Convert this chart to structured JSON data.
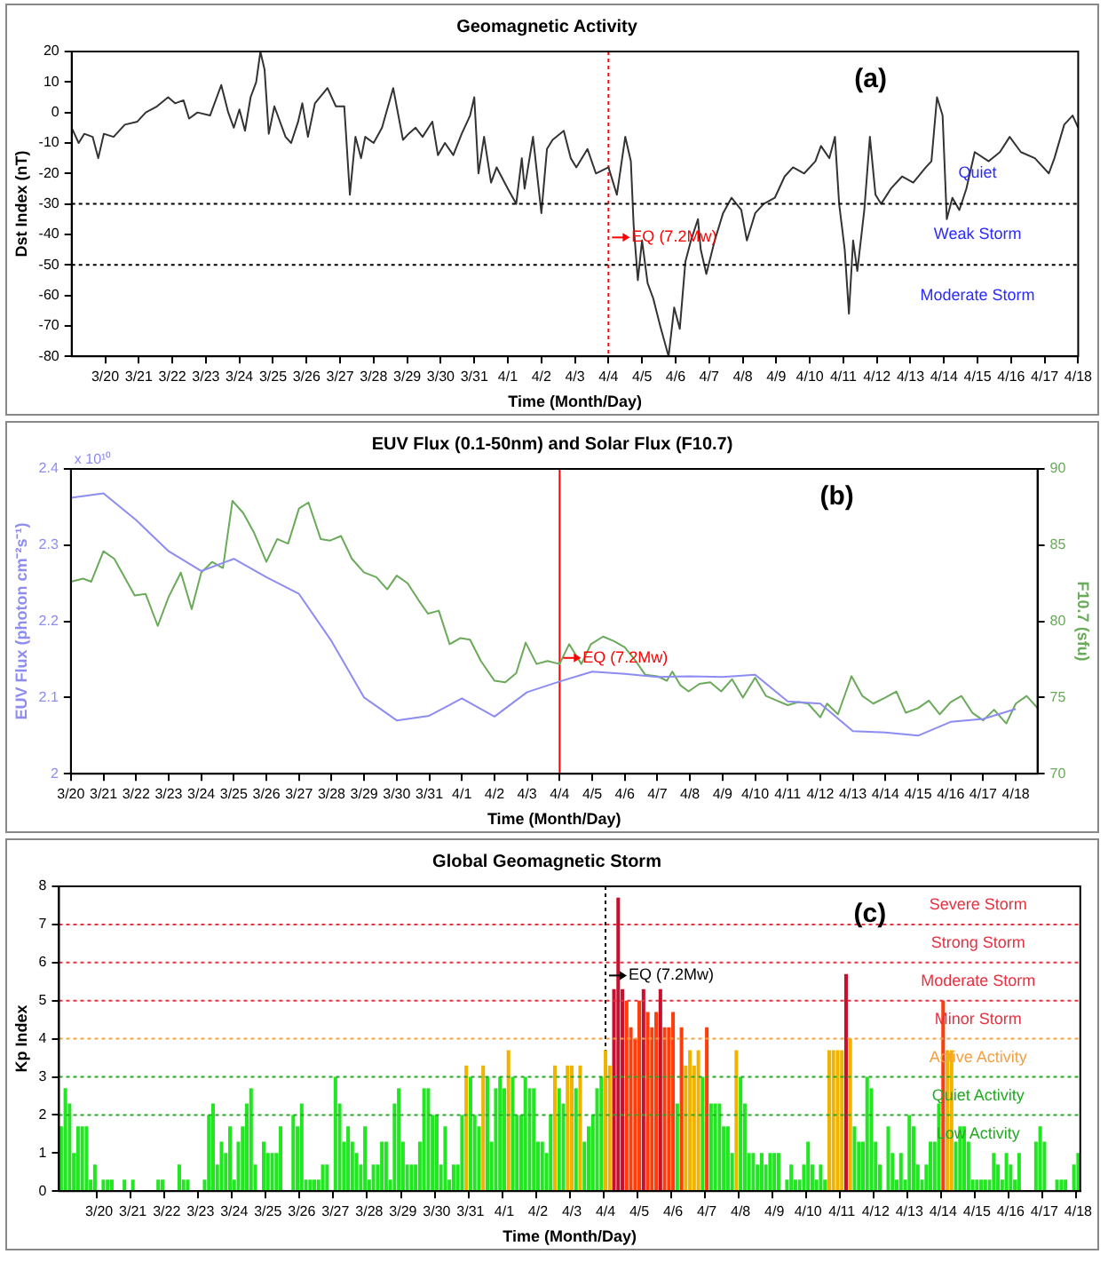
{
  "chart_data": [
    {
      "type": "line",
      "title": "Geomagnetic Activity",
      "xlabel": "Time (Month/Day)",
      "ylabel": "Dst Index (nT)",
      "xlim": [
        "--03-19T00:00",
        "--04-18T00:00"
      ],
      "xticks": [
        {
          "value": "--03-20",
          "label": "3/20"
        },
        {
          "value": "--03-21",
          "label": "3/21"
        },
        {
          "value": "--03-22",
          "label": "3/22"
        },
        {
          "value": "--03-23",
          "label": "3/23"
        },
        {
          "value": "--03-24",
          "label": "3/24"
        },
        {
          "value": "--03-25",
          "label": "3/25"
        },
        {
          "value": "--03-26",
          "label": "3/26"
        },
        {
          "value": "--03-27",
          "label": "3/27"
        },
        {
          "value": "--03-28",
          "label": "3/28"
        },
        {
          "value": "--03-29",
          "label": "3/29"
        },
        {
          "value": "--03-30",
          "label": "3/30"
        },
        {
          "value": "--03-31",
          "label": "3/31"
        },
        {
          "value": "--04-01",
          "label": "4/1"
        },
        {
          "value": "--04-02",
          "label": "4/2"
        },
        {
          "value": "--04-03",
          "label": "4/3"
        },
        {
          "value": "--04-04",
          "label": "4/4"
        },
        {
          "value": "--04-05",
          "label": "4/5"
        },
        {
          "value": "--04-06",
          "label": "4/6"
        },
        {
          "value": "--04-07",
          "label": "4/7"
        },
        {
          "value": "--04-08",
          "label": "4/8"
        },
        {
          "value": "--04-09",
          "label": "4/9"
        },
        {
          "value": "--04-10",
          "label": "4/10"
        },
        {
          "value": "--04-11",
          "label": "4/11"
        },
        {
          "value": "--04-12",
          "label": "4/12"
        },
        {
          "value": "--04-13",
          "label": "4/13"
        },
        {
          "value": "--04-14",
          "label": "4/14"
        },
        {
          "value": "--04-15",
          "label": "4/15"
        },
        {
          "value": "--04-16",
          "label": "4/16"
        },
        {
          "value": "--04-17",
          "label": "4/17"
        },
        {
          "value": "--04-18",
          "label": "4/18"
        }
      ],
      "ylim": [
        -80,
        20
      ],
      "yticks": [
        -80,
        -70,
        -60,
        -50,
        -40,
        -30,
        -20,
        -10,
        0,
        10,
        20
      ],
      "series": [
        {
          "color": "#333333",
          "x": [
            "--03-19T00:00",
            "--03-19T05:00",
            "--03-19T09:00",
            "--03-19T15:00",
            "--03-19T19:00",
            "--03-19T23:00",
            "--03-20T06:00",
            "--03-20T14:00",
            "--03-20T23:00",
            "--03-21T05:00",
            "--03-21T13:00",
            "--03-21T21:00",
            "--03-22T02:00",
            "--03-22T08:00",
            "--03-22T12:00",
            "--03-22T18:00",
            "--03-23T03:00",
            "--03-23T11:00",
            "--03-23T16:00",
            "--03-23T20:00",
            "--03-24T00:00",
            "--03-24T04:00",
            "--03-24T08:00",
            "--03-24T12:00",
            "--03-24T15:00",
            "--03-24T18:00",
            "--03-24T21:00",
            "--03-25T01:00",
            "--03-25T09:00",
            "--03-25T13:00",
            "--03-25T18:00",
            "--03-25T21:00",
            "--03-26T01:00",
            "--03-26T06:00",
            "--03-26T15:00",
            "--03-26T21:00",
            "--03-27T03:00",
            "--03-27T07:00",
            "--03-27T11:00",
            "--03-27T15:00",
            "--03-27T18:00",
            "--03-28T00:00",
            "--03-28T06:00",
            "--03-28T14:00",
            "--03-28T21:00",
            "--03-29T01:00",
            "--03-29T06:00",
            "--03-29T11:00",
            "--03-29T18:00",
            "--03-29T22:00",
            "--03-30T03:00",
            "--03-30T09:00",
            "--03-30T15:00",
            "--03-30T21:00",
            "--03-31T00:00",
            "--03-31T03:00",
            "--03-31T07:00",
            "--03-31T12:00",
            "--03-31T16:00",
            "--04-01T00:00",
            "--04-01T06:00",
            "--04-01T10:00",
            "--04-01T12:00",
            "--04-01T18:00",
            "--04-02T00:00",
            "--04-02T04:00",
            "--04-02T08:00",
            "--04-02T16:00",
            "--04-02T21:00",
            "--04-03T01:00",
            "--04-03T09:00",
            "--04-03T15:00",
            "--04-04T00:00",
            "--04-04T06:00",
            "--04-04T12:00",
            "--04-04T16:00",
            "--04-04T18:00",
            "--04-04T21:00",
            "--04-05T00:00",
            "--04-05T04:00",
            "--04-05T08:00",
            "--04-05T13:00",
            "--04-05T19:00",
            "--04-05T23:00",
            "--04-06T03:00",
            "--04-06T07:00",
            "--04-06T11:00",
            "--04-06T16:00",
            "--04-06T18:00",
            "--04-06T22:00",
            "--04-07T04:00",
            "--04-07T10:00",
            "--04-07T16:00",
            "--04-07T23:00",
            "--04-08T03:00",
            "--04-08T09:00",
            "--04-08T15:00",
            "--04-08T23:00",
            "--04-09T06:00",
            "--04-09T12:00",
            "--04-09T20:00",
            "--04-10T04:00",
            "--04-10T08:00",
            "--04-10T14:00",
            "--04-10T18:00",
            "--04-10T21:00",
            "--04-11T01:00",
            "--04-11T04:00",
            "--04-11T07:00",
            "--04-11T10:00",
            "--04-11T15:00",
            "--04-11T19:00",
            "--04-11T23:00",
            "--04-12T03:00",
            "--04-12T10:00",
            "--04-12T18:00",
            "--04-13T02:00",
            "--04-13T11:00",
            "--04-13T15:00",
            "--04-13T19:00",
            "--04-13T23:00",
            "--04-14T02:00",
            "--04-14T06:00",
            "--04-14T11:00",
            "--04-14T16:00",
            "--04-14T22:00",
            "--04-15T08:00",
            "--04-15T16:00",
            "--04-15T23:00",
            "--04-16T07:00",
            "--04-16T17:00",
            "--04-17T03:00",
            "--04-17T07:00",
            "--04-17T14:00",
            "--04-17T20:00",
            "--04-18T00:00"
          ],
          "values": [
            -5,
            -10,
            -7,
            -8,
            -15,
            -7,
            -8,
            -4,
            -3,
            0,
            2,
            5,
            3,
            4,
            -2,
            0,
            -1,
            9,
            0,
            -5,
            1,
            -6,
            5,
            10,
            20,
            14,
            -7,
            2,
            -8,
            -10,
            -3,
            3,
            -8,
            3,
            8,
            2,
            2,
            -27,
            -8,
            -15,
            -8,
            -10,
            -5,
            8,
            -9,
            -7,
            -5,
            -8,
            -3,
            -14,
            -10,
            -14,
            -7,
            -1,
            5,
            -20,
            -8,
            -23,
            -18,
            -25,
            -30,
            -15,
            -25,
            -8,
            -33,
            -12,
            -9,
            -6,
            -15,
            -18,
            -12,
            -20,
            -18,
            -27,
            -8,
            -16,
            -37,
            -55,
            -42,
            -56,
            -61,
            -70,
            -80,
            -64,
            -71,
            -49,
            -42,
            -35,
            -45,
            -53,
            -42,
            -33,
            -28,
            -32,
            -42,
            -33,
            -30,
            -28,
            -21,
            -18,
            -20,
            -16,
            -11,
            -15,
            -8,
            -30,
            -45,
            -66,
            -42,
            -52,
            -32,
            -8,
            -27,
            -30,
            -25,
            -21,
            -23,
            -18,
            -16,
            5,
            -1,
            -35,
            -28,
            -32,
            -25,
            -13,
            -16,
            -13,
            -8,
            -13,
            -15,
            -20,
            -15,
            -4,
            -1,
            -5
          ]
        }
      ],
      "ref_lines": [
        {
          "axis": "y",
          "value": -30,
          "line_style": "dotted"
        },
        {
          "axis": "y",
          "value": -50,
          "line_style": "dotted"
        },
        {
          "axis": "x",
          "value": "--04-04",
          "color": "#ff0000",
          "line_style": "dotted"
        }
      ],
      "annotations": [
        "(a)",
        "Quiet",
        "Weak Storm",
        "Moderate Storm",
        {
          "text": "EQ (7.2Mw)",
          "x": "--04-04",
          "y": -41
        }
      ]
    },
    {
      "type": "line",
      "title": "EUV Flux (0.1-50nm) and Solar Flux (F10.7)",
      "xlabel": "Time (Month/Day)",
      "ylabel": "EUV Flux (photon cm⁻²s⁻¹)",
      "y2label": "F10.7 (sfu)",
      "xlim": [
        "--03-20T00:00",
        "--04-18T16:00"
      ],
      "xticks": [
        {
          "value": "--03-20",
          "label": "3/20"
        },
        {
          "value": "--03-21",
          "label": "3/21"
        },
        {
          "value": "--03-22",
          "label": "3/22"
        },
        {
          "value": "--03-23",
          "label": "3/23"
        },
        {
          "value": "--03-24",
          "label": "3/24"
        },
        {
          "value": "--03-25",
          "label": "3/25"
        },
        {
          "value": "--03-26",
          "label": "3/26"
        },
        {
          "value": "--03-27",
          "label": "3/27"
        },
        {
          "value": "--03-28",
          "label": "3/28"
        },
        {
          "value": "--03-29",
          "label": "3/29"
        },
        {
          "value": "--03-30",
          "label": "3/30"
        },
        {
          "value": "--03-31",
          "label": "3/31"
        },
        {
          "value": "--04-01",
          "label": "4/1"
        },
        {
          "value": "--04-02",
          "label": "4/2"
        },
        {
          "value": "--04-03",
          "label": "4/3"
        },
        {
          "value": "--04-04",
          "label": "4/4"
        },
        {
          "value": "--04-05",
          "label": "4/5"
        },
        {
          "value": "--04-06",
          "label": "4/6"
        },
        {
          "value": "--04-07",
          "label": "4/7"
        },
        {
          "value": "--04-08",
          "label": "4/8"
        },
        {
          "value": "--04-09",
          "label": "4/9"
        },
        {
          "value": "--04-10",
          "label": "4/10"
        },
        {
          "value": "--04-11",
          "label": "4/11"
        },
        {
          "value": "--04-12",
          "label": "4/12"
        },
        {
          "value": "--04-13",
          "label": "4/13"
        },
        {
          "value": "--04-14",
          "label": "4/14"
        },
        {
          "value": "--04-15",
          "label": "4/15"
        },
        {
          "value": "--04-16",
          "label": "4/16"
        },
        {
          "value": "--04-17",
          "label": "4/17"
        },
        {
          "value": "--04-18",
          "label": "4/18"
        }
      ],
      "ylim": [
        2,
        2.4
      ],
      "yticks": [
        2,
        2.1,
        2.2,
        2.3,
        2.4
      ],
      "y2lim": [
        70,
        90
      ],
      "y2ticks": [
        70,
        75,
        80,
        85,
        90
      ],
      "series": [
        {
          "color": "#8c8cf2",
          "x": [
            "--03-20",
            "--03-21",
            "--03-22",
            "--03-23",
            "--03-24",
            "--03-25",
            "--03-26",
            "--03-27",
            "--03-28",
            "--03-29",
            "--03-30",
            "--03-31",
            "--04-01",
            "--04-02",
            "--04-03",
            "--04-04",
            "--04-05",
            "--04-06",
            "--04-07",
            "--04-08",
            "--04-09",
            "--04-10",
            "--04-11",
            "--04-12",
            "--04-13",
            "--04-14",
            "--04-15",
            "--04-16",
            "--04-17",
            "--04-18"
          ],
          "values": [
            2.362,
            2.368,
            2.333,
            2.292,
            2.266,
            2.282,
            2.258,
            2.236,
            2.174,
            2.1,
            2.07,
            2.076,
            2.099,
            2.075,
            2.107,
            2.121,
            2.134,
            2.131,
            2.127,
            2.128,
            2.127,
            2.13,
            2.095,
            2.092,
            2.056,
            2.054,
            2.05,
            2.068,
            2.072,
            2.085
          ]
        },
        {
          "color": "#6aaa5a",
          "axis": "y2",
          "x": [
            "--03-20T00:00",
            "--03-20T09:00",
            "--03-20T15:00",
            "--03-21T00:00",
            "--03-21T08:00",
            "--03-21T23:00",
            "--03-22T07:00",
            "--03-22T16:00",
            "--03-23T00:00",
            "--03-23T09:00",
            "--03-23T17:00",
            "--03-24T00:00",
            "--03-24T08:00",
            "--03-24T16:00",
            "--03-24T23:00",
            "--03-25T07:00",
            "--03-25T15:00",
            "--03-26T00:00",
            "--03-26T08:00",
            "--03-26T16:00",
            "--03-27T00:00",
            "--03-27T07:00",
            "--03-27T16:00",
            "--03-27T23:00",
            "--03-28T07:00",
            "--03-28T15:00",
            "--03-29T00:00",
            "--03-29T09:00",
            "--03-29T17:00",
            "--03-30T00:00",
            "--03-30T08:00",
            "--03-30T16:00",
            "--03-30T23:00",
            "--03-31T07:00",
            "--03-31T15:00",
            "--03-31T23:00",
            "--04-01T06:00",
            "--04-01T14:00",
            "--04-02T00:00",
            "--04-02T08:00",
            "--04-02T16:00",
            "--04-02T23:00",
            "--04-03T07:00",
            "--04-03T15:00",
            "--04-04T00:00",
            "--04-04T07:00",
            "--04-04T16:00",
            "--04-04T23:00",
            "--04-05T08:00",
            "--04-05T16:00",
            "--04-06T00:00",
            "--04-06T08:00",
            "--04-06T15:00",
            "--04-07T00:00",
            "--04-07T07:00",
            "--04-07T11:00",
            "--04-07T17:00",
            "--04-07T23:00",
            "--04-08T07:00",
            "--04-08T15:00",
            "--04-08T23:00",
            "--04-09T07:00",
            "--04-09T15:00",
            "--04-10T00:00",
            "--04-10T08:00",
            "--04-10T16:00",
            "--04-11T00:00",
            "--04-11T08:00",
            "--04-11T15:00",
            "--04-12T00:00",
            "--04-12T05:00",
            "--04-12T13:00",
            "--04-12T23:00",
            "--04-13T07:00",
            "--04-13T15:00",
            "--04-14T00:00",
            "--04-14T08:00",
            "--04-14T15:00",
            "--04-15T00:00",
            "--04-15T08:00",
            "--04-15T16:00",
            "--04-16T00:00",
            "--04-16T08:00",
            "--04-16T16:00",
            "--04-17T00:00",
            "--04-17T08:00",
            "--04-17T17:00",
            "--04-18T00:00",
            "--04-18T08:00",
            "--04-18T16:00"
          ],
          "values": [
            82.6,
            82.8,
            82.6,
            84.6,
            84.1,
            81.7,
            81.8,
            79.7,
            81.6,
            83.2,
            80.8,
            83.2,
            83.9,
            83.5,
            87.9,
            87.1,
            85.8,
            83.9,
            85.4,
            85.1,
            87.4,
            87.8,
            85.4,
            85.3,
            85.6,
            84.1,
            83.2,
            82.9,
            82.1,
            83,
            82.5,
            81.4,
            80.5,
            80.7,
            78.5,
            78.9,
            78.8,
            77.4,
            76.1,
            76,
            76.6,
            78.6,
            77.2,
            77.4,
            77.2,
            78.5,
            77.2,
            78.5,
            79,
            78.7,
            78.3,
            77.4,
            76.5,
            76.4,
            76.1,
            76.7,
            75.8,
            75.4,
            75.9,
            76,
            75.4,
            76.2,
            75,
            76.3,
            75.1,
            74.8,
            74.5,
            74.7,
            74.6,
            73.7,
            74.6,
            73.9,
            76.4,
            75.1,
            74.6,
            75,
            75.4,
            74,
            74.3,
            74.8,
            73.9,
            74.7,
            75.1,
            74,
            73.5,
            74.2,
            73.3,
            74.6,
            75.1,
            74.3
          ]
        }
      ],
      "ref_lines": [
        {
          "axis": "x",
          "value": "--04-04",
          "color": "#ff0000",
          "line_style": "solid"
        }
      ],
      "annotations": [
        "(b)",
        "x 10¹⁰",
        {
          "text": "EQ (7.2Mw)",
          "x": "--04-04",
          "y": 2.152
        }
      ]
    },
    {
      "type": "bar",
      "title": "Global Geomagnetic Storm",
      "xlabel": "Time (Month/Day)",
      "ylabel": "Kp Index",
      "categories": [
        null,
        null,
        null,
        null,
        null,
        null,
        null,
        null,
        null,
        "3/20",
        null,
        null,
        null,
        null,
        null,
        null,
        null,
        "3/21",
        null,
        null,
        null,
        null,
        null,
        null,
        null,
        "3/22",
        null,
        null,
        null,
        null,
        null,
        null,
        null,
        "3/23",
        null,
        null,
        null,
        null,
        null,
        null,
        null,
        "3/24",
        null,
        null,
        null,
        null,
        null,
        null,
        null,
        "3/25",
        null,
        null,
        null,
        null,
        null,
        null,
        null,
        "3/26",
        null,
        null,
        null,
        null,
        null,
        null,
        null,
        "3/27",
        null,
        null,
        null,
        null,
        null,
        null,
        null,
        "3/28",
        null,
        null,
        null,
        null,
        null,
        null,
        null,
        "3/29",
        null,
        null,
        null,
        null,
        null,
        null,
        null,
        "3/30",
        null,
        null,
        null,
        null,
        null,
        null,
        null,
        "3/31",
        null,
        null,
        null,
        null,
        null,
        null,
        null,
        "4/1",
        null,
        null,
        null,
        null,
        null,
        null,
        null,
        "4/2",
        null,
        null,
        null,
        null,
        null,
        null,
        null,
        "4/3",
        null,
        null,
        null,
        null,
        null,
        null,
        null,
        "4/4",
        null,
        null,
        null,
        null,
        null,
        null,
        null,
        "4/5",
        null,
        null,
        null,
        null,
        null,
        null,
        null,
        "4/6",
        null,
        null,
        null,
        null,
        null,
        null,
        null,
        "4/7",
        null,
        null,
        null,
        null,
        null,
        null,
        null,
        "4/8",
        null,
        null,
        null,
        null,
        null,
        null,
        null,
        "4/9",
        null,
        null,
        null,
        null,
        null,
        null,
        null,
        "4/10",
        null,
        null,
        null,
        null,
        null,
        null,
        null,
        "4/11",
        null,
        null,
        null,
        null,
        null,
        null,
        null,
        "4/12",
        null,
        null,
        null,
        null,
        null,
        null,
        null,
        "4/13",
        null,
        null,
        null,
        null,
        null,
        null,
        null,
        "4/14",
        null,
        null,
        null,
        null,
        null,
        null,
        null,
        "4/15",
        null,
        null,
        null,
        null,
        null,
        null,
        null,
        "4/16",
        null,
        null,
        null,
        null,
        null,
        null,
        null,
        "4/17",
        null,
        null,
        null,
        null,
        null,
        null,
        null,
        "4/18"
      ],
      "ylim": [
        0,
        8
      ],
      "yticks": [
        0,
        1,
        2,
        3,
        4,
        5,
        6,
        7,
        8
      ],
      "values": [
        1.7,
        2.7,
        2.3,
        1,
        1.7,
        1.7,
        1.7,
        0.3,
        0.7,
        0,
        0.3,
        0.3,
        0.3,
        0,
        0,
        0.3,
        0,
        0.3,
        0,
        0,
        0,
        0,
        0,
        0.3,
        0.3,
        0,
        0,
        0,
        0.7,
        0.3,
        0.3,
        0,
        0,
        0,
        0.3,
        2,
        2.3,
        0.7,
        1.3,
        1,
        1.7,
        0.3,
        1.3,
        1.7,
        2.3,
        2.7,
        0.7,
        0,
        1.3,
        1,
        1,
        1,
        1.7,
        0,
        0,
        2,
        1.7,
        2.3,
        0.3,
        0.3,
        0.3,
        0.3,
        0.7,
        0.7,
        0,
        3,
        2.3,
        1.3,
        1.7,
        1.3,
        1,
        0.7,
        1.7,
        0.3,
        0.7,
        0.7,
        1.3,
        1.3,
        0.3,
        2.3,
        2.7,
        1.3,
        0.7,
        0.7,
        0.7,
        1.3,
        2.7,
        2.7,
        2,
        2,
        0.7,
        1.7,
        0.3,
        0.7,
        0.7,
        2,
        3.3,
        3,
        2,
        1.7,
        3.3,
        3,
        1.3,
        2.7,
        3,
        2.7,
        3.7,
        3,
        2,
        2,
        3,
        2.7,
        2.7,
        1.3,
        1.3,
        1,
        2,
        3.3,
        2.7,
        2.3,
        3.3,
        3.3,
        2.7,
        3.3,
        1.3,
        1.7,
        2,
        2.7,
        3,
        3.7,
        3.3,
        5.3,
        7.7,
        5.3,
        5,
        4.3,
        4,
        5,
        5.3,
        4.7,
        4.3,
        4.7,
        5.3,
        4.3,
        4.3,
        4.7,
        2.3,
        4.3,
        3.3,
        3.7,
        3.3,
        3.7,
        3,
        4.3,
        2.3,
        2.3,
        2.3,
        1.7,
        1.7,
        1,
        3.7,
        3,
        2.3,
        1,
        1,
        0.7,
        1,
        0.7,
        1,
        1,
        1,
        0,
        0.3,
        0.7,
        0.3,
        0.3,
        0.7,
        1.3,
        0.7,
        0.3,
        0.7,
        0.3,
        3.7,
        3.7,
        3.7,
        3.7,
        5.7,
        4,
        1.7,
        1.3,
        1.3,
        3,
        2.7,
        1.3,
        0.7,
        0,
        1.7,
        1,
        0.3,
        1,
        0.3,
        2,
        1.7,
        0.7,
        0.3,
        0.7,
        1.3,
        1.3,
        2.3,
        5,
        3.7,
        3.7,
        1.3,
        1.7,
        1.7,
        1.3,
        0.3,
        0.3,
        0.3,
        0.3,
        0.3,
        1,
        0.7,
        0.3,
        1,
        0.7,
        0.3,
        1,
        0,
        0,
        0,
        1.3,
        1.7,
        1.3,
        0,
        0,
        0.3,
        0.3,
        0.3,
        0,
        0.7,
        1
      ],
      "colors": [
        "#22e622",
        "#22e622",
        "#22e622",
        "#22e622",
        "#22e622",
        "#22e622",
        "#22e622",
        "#22e622",
        "#22e622",
        "#22e622",
        "#22e622",
        "#22e622",
        "#22e622",
        "#22e622",
        "#22e622",
        "#22e622",
        "#22e622",
        "#22e622",
        "#22e622",
        "#22e622",
        "#22e622",
        "#22e622",
        "#22e622",
        "#22e622",
        "#22e622",
        "#22e622",
        "#22e622",
        "#22e622",
        "#22e622",
        "#22e622",
        "#22e622",
        "#22e622",
        "#22e622",
        "#22e622",
        "#22e622",
        "#22e622",
        "#22e622",
        "#22e622",
        "#22e622",
        "#22e622",
        "#22e622",
        "#22e622",
        "#22e622",
        "#22e622",
        "#22e622",
        "#22e622",
        "#22e622",
        "#22e622",
        "#22e622",
        "#22e622",
        "#22e622",
        "#22e622",
        "#22e622",
        "#22e622",
        "#22e622",
        "#22e622",
        "#22e622",
        "#22e622",
        "#22e622",
        "#22e622",
        "#22e622",
        "#22e622",
        "#22e622",
        "#22e622",
        "#22e622",
        "#22e622",
        "#22e622",
        "#22e622",
        "#22e622",
        "#22e622",
        "#22e622",
        "#22e622",
        "#22e622",
        "#22e622",
        "#22e622",
        "#22e622",
        "#22e622",
        "#22e622",
        "#22e622",
        "#22e622",
        "#22e622",
        "#22e622",
        "#22e622",
        "#22e622",
        "#22e622",
        "#22e622",
        "#22e622",
        "#22e622",
        "#22e622",
        "#22e622",
        "#22e622",
        "#22e622",
        "#22e622",
        "#22e622",
        "#22e622",
        "#22e622",
        "#f0b400",
        "#22e622",
        "#22e622",
        "#22e622",
        "#f0b400",
        "#22e622",
        "#22e622",
        "#22e622",
        "#22e622",
        "#22e622",
        "#f0b400",
        "#22e622",
        "#22e622",
        "#22e622",
        "#22e622",
        "#22e622",
        "#22e622",
        "#22e622",
        "#22e622",
        "#22e622",
        "#22e622",
        "#f0b400",
        "#22e622",
        "#22e622",
        "#f0b400",
        "#f0b400",
        "#22e622",
        "#f0b400",
        "#22e622",
        "#22e622",
        "#22e622",
        "#22e622",
        "#22e622",
        "#f0b400",
        "#f0b400",
        "#c8102e",
        "#c8102e",
        "#c8102e",
        "#ff3c0a",
        "#ff3c0a",
        "#ff3c0a",
        "#ff3c0a",
        "#c8102e",
        "#ff3c0a",
        "#ff3c0a",
        "#ff3c0a",
        "#c8102e",
        "#ff3c0a",
        "#ff3c0a",
        "#ff3c0a",
        "#22e622",
        "#ff3c0a",
        "#f0b400",
        "#f0b400",
        "#f0b400",
        "#f0b400",
        "#22e622",
        "#ff3c0a",
        "#22e622",
        "#22e622",
        "#22e622",
        "#22e622",
        "#22e622",
        "#22e622",
        "#f0b400",
        "#22e622",
        "#22e622",
        "#22e622",
        "#22e622",
        "#22e622",
        "#22e622",
        "#22e622",
        "#22e622",
        "#22e622",
        "#22e622",
        "#22e622",
        "#22e622",
        "#22e622",
        "#22e622",
        "#22e622",
        "#22e622",
        "#22e622",
        "#22e622",
        "#22e622",
        "#22e622",
        "#22e622",
        "#f0b400",
        "#f0b400",
        "#f0b400",
        "#f0b400",
        "#c8102e",
        "#f0b400",
        "#22e622",
        "#22e622",
        "#22e622",
        "#22e622",
        "#22e622",
        "#22e622",
        "#22e622",
        "#22e622",
        "#22e622",
        "#22e622",
        "#22e622",
        "#22e622",
        "#22e622",
        "#22e622",
        "#22e622",
        "#22e622",
        "#22e622",
        "#22e622",
        "#22e622",
        "#22e622",
        "#22e622",
        "#ff3c0a",
        "#f0b400",
        "#f0b400",
        "#22e622",
        "#22e622",
        "#22e622",
        "#22e622",
        "#22e622",
        "#22e622",
        "#22e622",
        "#22e622",
        "#22e622",
        "#22e622",
        "#22e622",
        "#22e622",
        "#22e622",
        "#22e622",
        "#22e622",
        "#22e622",
        "#22e622",
        "#22e622",
        "#22e622",
        "#22e622",
        "#22e622",
        "#22e622",
        "#22e622",
        "#22e622",
        "#22e622",
        "#22e622",
        "#22e622",
        "#22e622",
        "#22e622",
        "#22e622"
      ],
      "ref_lines": [
        {
          "axis": "y",
          "value": 7,
          "color": "#e83040",
          "line_style": "dotted"
        },
        {
          "axis": "y",
          "value": 6,
          "color": "#e83040",
          "line_style": "dotted"
        },
        {
          "axis": "y",
          "value": 5,
          "color": "#e83040",
          "line_style": "dotted"
        },
        {
          "axis": "y",
          "value": 4,
          "color": "#f5a040",
          "line_style": "dotted"
        },
        {
          "axis": "y",
          "value": 3,
          "color": "#22aa22",
          "line_style": "dotted"
        },
        {
          "axis": "y",
          "value": 2,
          "color": "#22aa22",
          "line_style": "dotted"
        },
        {
          "axis": "x",
          "value": "4/4",
          "color": "#000000",
          "line_style": "dotted"
        }
      ],
      "annotations": [
        "(c)",
        "Severe Storm",
        "Strong Storm",
        "Moderate Storm",
        "Minor Storm",
        "Active Activity",
        "Quiet Activity",
        "Low Activity",
        {
          "text": "EQ (7.2Mw)",
          "x": "4/4",
          "y": 5.66
        }
      ]
    }
  ]
}
